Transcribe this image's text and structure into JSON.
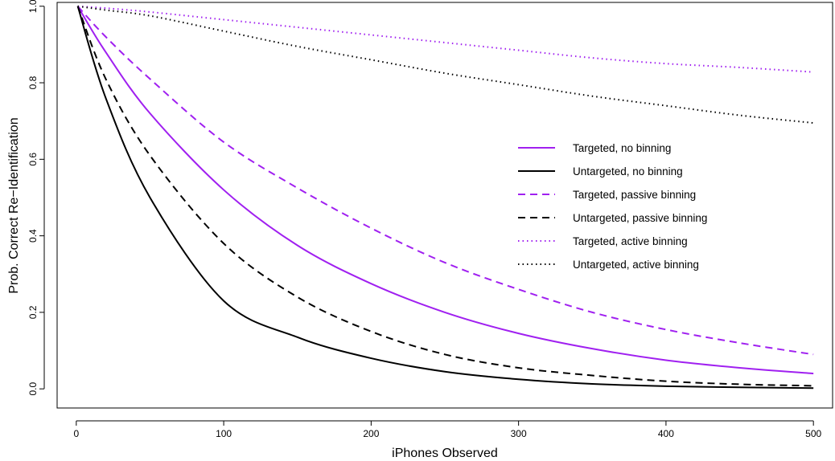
{
  "chart_data": {
    "type": "line",
    "title": "",
    "xlabel": "iPhones Observed",
    "ylabel": "Prob. Correct Re−Identification",
    "xlim": [
      -13,
      513
    ],
    "ylim": [
      -0.05,
      1.01
    ],
    "xticks": [
      0,
      100,
      200,
      300,
      400,
      500
    ],
    "yticks": [
      0.0,
      0.2,
      0.4,
      0.6,
      0.8,
      1.0
    ],
    "xtick_labels": [
      "0",
      "100",
      "200",
      "300",
      "400",
      "500"
    ],
    "ytick_labels": [
      "0.0",
      "0.2",
      "0.4",
      "0.6",
      "0.8",
      "1.0"
    ],
    "grid": false,
    "legend_position": "center-right",
    "x": [
      1,
      20,
      50,
      100,
      150,
      200,
      250,
      300,
      350,
      400,
      450,
      500
    ],
    "series": [
      {
        "name": "Targeted, no binning",
        "color": "#a020f0",
        "dash": "solid",
        "values": [
          1.0,
          0.88,
          0.72,
          0.52,
          0.375,
          0.275,
          0.2,
          0.145,
          0.105,
          0.075,
          0.055,
          0.04
        ]
      },
      {
        "name": "Untargeted, no binning",
        "color": "#000000",
        "dash": "solid",
        "values": [
          1.0,
          0.76,
          0.5,
          0.23,
          0.135,
          0.08,
          0.045,
          0.025,
          0.013,
          0.007,
          0.004,
          0.002
        ]
      },
      {
        "name": "Targeted, passive binning",
        "color": "#a020f0",
        "dash": "dashed",
        "values": [
          1.0,
          0.92,
          0.81,
          0.645,
          0.525,
          0.42,
          0.33,
          0.26,
          0.2,
          0.155,
          0.12,
          0.09
        ]
      },
      {
        "name": "Untargeted, passive binning",
        "color": "#000000",
        "dash": "dashed",
        "values": [
          1.0,
          0.81,
          0.61,
          0.38,
          0.24,
          0.15,
          0.09,
          0.055,
          0.035,
          0.02,
          0.012,
          0.008
        ]
      },
      {
        "name": "Targeted, active binning",
        "color": "#a020f0",
        "dash": "dotted",
        "values": [
          1.0,
          0.995,
          0.985,
          0.965,
          0.945,
          0.925,
          0.905,
          0.885,
          0.865,
          0.85,
          0.84,
          0.828
        ]
      },
      {
        "name": "Untargeted, active binning",
        "color": "#000000",
        "dash": "dotted",
        "values": [
          1.0,
          0.99,
          0.975,
          0.935,
          0.895,
          0.86,
          0.825,
          0.795,
          0.765,
          0.74,
          0.715,
          0.695
        ]
      }
    ]
  }
}
